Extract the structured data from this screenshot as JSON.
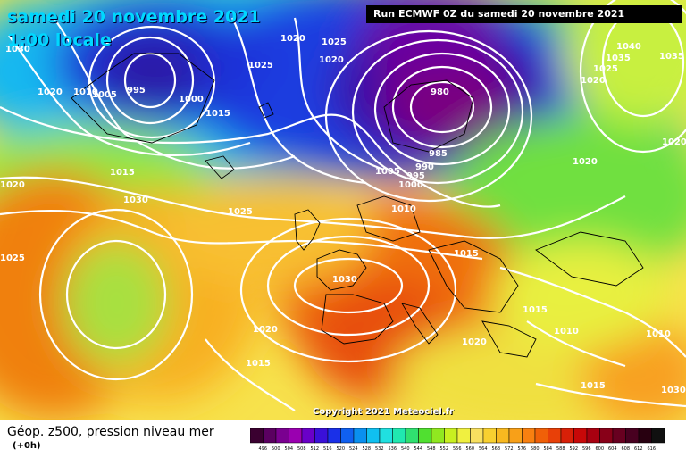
{
  "header": {
    "date": "samedi 20 novembre 2021",
    "time": "1:00 locale",
    "run": "Run ECMWF 0Z du samedi 20 novembre 2021"
  },
  "map": {
    "copyright": "Copyright 2021 Meteociel.fr",
    "pressure_labels": [
      "1030",
      "1025",
      "1020",
      "1025",
      "1020",
      "1020",
      "1010",
      "1005",
      "995",
      "1000",
      "1015",
      "1015",
      "980",
      "985",
      "990",
      "995",
      "1000",
      "1005",
      "1010",
      "1015",
      "1020",
      "1025",
      "1030",
      "1020",
      "1015",
      "1030",
      "1020",
      "1020",
      "1010",
      "1010",
      "1015",
      "1040",
      "1035",
      "1035",
      "1020",
      "1020",
      "1025",
      "1025",
      "1030",
      "1015"
    ]
  },
  "legend": {
    "title": "Géop. z500, pression niveau mer",
    "subtitle": "(+0h)",
    "colors": [
      "#3a0030",
      "#5a0060",
      "#7a0090",
      "#9a00b0",
      "#6a00c8",
      "#3a10d8",
      "#1a30e8",
      "#1060f0",
      "#0a90f0",
      "#10c0f0",
      "#20e0e0",
      "#20e8b0",
      "#30e070",
      "#50e030",
      "#90e820",
      "#c8f020",
      "#f0f040",
      "#f8e060",
      "#f8d030",
      "#f8b820",
      "#f8a018",
      "#f88010",
      "#f06008",
      "#e84008",
      "#d82008",
      "#c80808",
      "#a80010",
      "#880018",
      "#680020",
      "#480020",
      "#280010",
      "#101010"
    ],
    "scale_labels": [
      "496",
      "500",
      "504",
      "508",
      "512",
      "516",
      "520",
      "524",
      "528",
      "532",
      "536",
      "540",
      "544",
      "548",
      "552",
      "556",
      "560",
      "564",
      "568",
      "572",
      "576",
      "580",
      "584",
      "588",
      "592",
      "596",
      "600",
      "604",
      "608",
      "612",
      "616"
    ]
  }
}
